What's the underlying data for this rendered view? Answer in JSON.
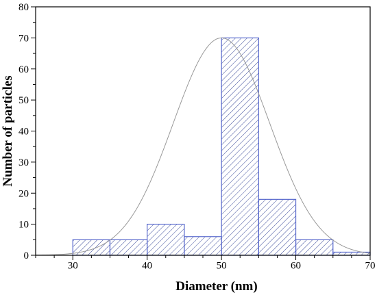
{
  "chart_data": {
    "type": "bar",
    "xlabel": "Diameter (nm)",
    "ylabel": "Number of particles",
    "xlim": [
      25,
      70
    ],
    "ylim": [
      0,
      80
    ],
    "x_ticks": [
      30,
      40,
      50,
      60,
      70
    ],
    "y_ticks": [
      0,
      10,
      20,
      30,
      40,
      50,
      60,
      70,
      80
    ],
    "bin_width": 5,
    "bins": [
      {
        "start": 30,
        "end": 35,
        "value": 5
      },
      {
        "start": 35,
        "end": 40,
        "value": 5
      },
      {
        "start": 40,
        "end": 45,
        "value": 10
      },
      {
        "start": 45,
        "end": 50,
        "value": 6
      },
      {
        "start": 50,
        "end": 55,
        "value": 70
      },
      {
        "start": 55,
        "end": 60,
        "value": 18
      },
      {
        "start": 60,
        "end": 65,
        "value": 5
      },
      {
        "start": 65,
        "end": 70,
        "value": 1
      }
    ],
    "fit_curve": {
      "type": "gaussian",
      "amplitude": 70,
      "center": 50,
      "sigma": 6.5
    },
    "grid": false,
    "bar_fill": "hatched",
    "colors": {
      "bar_edge": "#5566cc",
      "hatch": "#3a4a9a",
      "curve": "#999999",
      "axis": "#000000"
    }
  }
}
